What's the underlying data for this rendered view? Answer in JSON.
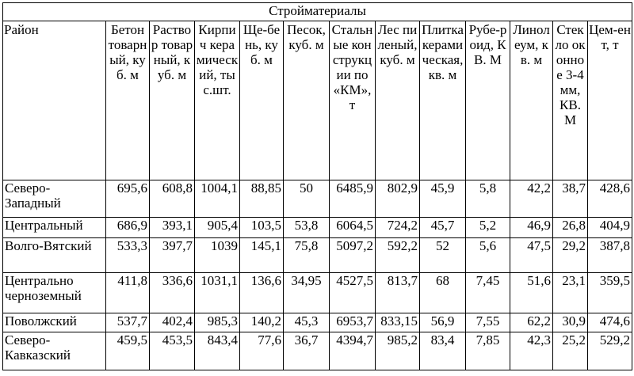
{
  "table": {
    "title": "Стройматериалы",
    "header": [
      "Район",
      "Бетон товарный, куб. м",
      "Раствор товарный, куб. м",
      "Кирпич керамический, тыс.шт.",
      "Ще-бень, куб. м",
      "Песок, куб. м",
      "Стальные конструкции по «КМ», т",
      "Лес пиленый, куб. м",
      "Плитка керамическая, кв. м",
      "Рубе-роид, КВ. М",
      "Линолеум, кв. м",
      "Стекло оконное 3-4 мм, КВ. М",
      "Цем-ент, т"
    ],
    "rows": [
      [
        "Северо-Западный",
        "695,6",
        "608,8",
        "1004,1",
        "88,85",
        "50",
        "6485,9",
        "802,9",
        "45,9",
        "5,8",
        "42,2",
        "38,7",
        "428,6"
      ],
      [
        "Центральный",
        "686,9",
        "393,1",
        "905,4",
        "103,5",
        "53,8",
        "6064,5",
        "724,2",
        "45,7",
        "5,2",
        "46,9",
        "26,8",
        "404,9"
      ],
      [
        "Волго-Вятский",
        "533,3",
        "397,7",
        "1039",
        "145,1",
        "75,8",
        "5097,2",
        "592,2",
        "52",
        "5,6",
        "47,5",
        "29,2",
        "387,8"
      ],
      [
        "Центрально черноземный",
        "411,8",
        "336,6",
        "1031,1",
        "136,6",
        "34,95",
        "4527,5",
        "813,7",
        "68",
        "7,45",
        "51,6",
        "23,1",
        "359,5"
      ],
      [
        "Поволжский",
        "537,7",
        "402,4",
        "985,3",
        "140,2",
        "45,3",
        "6953,7",
        "833,15",
        "56,9",
        "7,55",
        "62,2",
        "30,9",
        "474,6"
      ],
      [
        "Северо-Кавказский",
        "459,5",
        "453,5",
        "843,4",
        "77,6",
        "36,7",
        "4394,7",
        "985,2",
        "83,4",
        "7,85",
        "42,3",
        "25,2",
        "529,2"
      ]
    ]
  }
}
